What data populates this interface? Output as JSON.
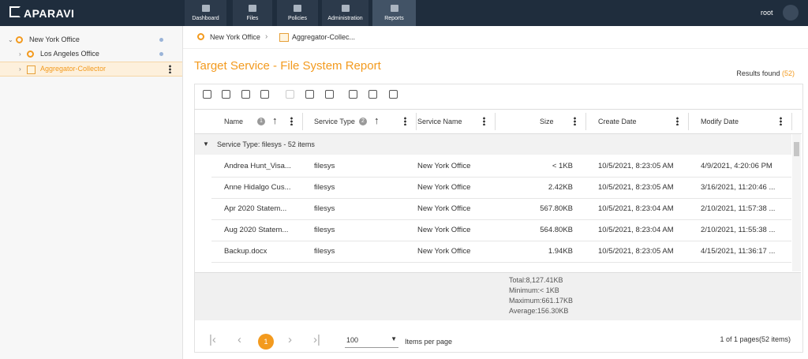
{
  "topbar": {
    "logo": "APARAVI",
    "nav": [
      "Dashboard",
      "Files",
      "Policies",
      "Administration",
      "Reports"
    ],
    "active": "Reports",
    "user": "root"
  },
  "sidebar": {
    "tree": [
      {
        "label": "New York Office"
      },
      {
        "label": "Los Angeles Office"
      },
      {
        "label": "Aggregator-Collector",
        "selected": true
      }
    ]
  },
  "breadcrumb": [
    "New York Office",
    "Aggregator-Collec..."
  ],
  "header": {
    "title": "Target Service - File System Report",
    "results_label": "Results found",
    "results_count": "(52)"
  },
  "table": {
    "columns": [
      "Name",
      "Service Type",
      "Service Name",
      "Size",
      "Create Date",
      "Modify Date"
    ],
    "sort_badges": [
      "1",
      "2"
    ],
    "group": "Service Type: filesys - 52 items",
    "rows": [
      [
        "Andrea Hunt_Visa...",
        "filesys",
        "New York Office",
        "< 1KB",
        "10/5/2021, 8:23:05 AM",
        "4/9/2021, 4:20:06 PM"
      ],
      [
        "Anne Hidalgo Cus...",
        "filesys",
        "New York Office",
        "2.42KB",
        "10/5/2021, 8:23:05 AM",
        "3/16/2021, 11:20:46 ..."
      ],
      [
        "Apr 2020 Statem...",
        "filesys",
        "New York Office",
        "567.80KB",
        "10/5/2021, 8:23:04 AM",
        "2/10/2021, 11:57:38 ..."
      ],
      [
        "Aug 2020 Statem...",
        "filesys",
        "New York Office",
        "564.80KB",
        "10/5/2021, 8:23:04 AM",
        "2/10/2021, 11:55:38 ..."
      ],
      [
        "Backup.docx",
        "filesys",
        "New York Office",
        "1.94KB",
        "10/5/2021, 8:23:05 AM",
        "4/15/2021, 11:36:17 ..."
      ]
    ],
    "summary": [
      "Total:8,127.41KB",
      "Minimum:< 1KB",
      "Maximum:661.17KB",
      "Average:156.30KB"
    ]
  },
  "pager": {
    "page": "1",
    "page_size": "100",
    "page_size_label": "Items per page",
    "status": "1 of 1 pages(52 items)"
  }
}
